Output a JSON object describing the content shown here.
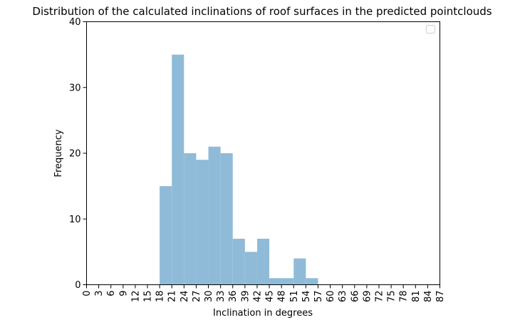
{
  "chart_data": {
    "type": "bar",
    "title": "Distribution of the calculated inclinations of roof surfaces in the predicted pointclouds",
    "xlabel": "Inclination in degrees",
    "ylabel": "Frequency",
    "x_ticks": [
      0,
      3,
      6,
      9,
      12,
      15,
      18,
      21,
      24,
      27,
      30,
      33,
      36,
      39,
      42,
      45,
      48,
      51,
      54,
      57,
      60,
      63,
      66,
      69,
      72,
      75,
      78,
      81,
      84,
      87
    ],
    "y_ticks": [
      0,
      10,
      20,
      30,
      40
    ],
    "xlim": [
      0,
      87
    ],
    "ylim": [
      0,
      40
    ],
    "bin_width": 3,
    "bins": [
      {
        "start": 18,
        "value": 15
      },
      {
        "start": 21,
        "value": 35
      },
      {
        "start": 24,
        "value": 20
      },
      {
        "start": 27,
        "value": 19
      },
      {
        "start": 30,
        "value": 21
      },
      {
        "start": 33,
        "value": 20
      },
      {
        "start": 36,
        "value": 7
      },
      {
        "start": 39,
        "value": 5
      },
      {
        "start": 42,
        "value": 7
      },
      {
        "start": 45,
        "value": 1
      },
      {
        "start": 48,
        "value": 1
      },
      {
        "start": 51,
        "value": 4
      },
      {
        "start": 54,
        "value": 1
      }
    ],
    "bar_color": "#8fbbd9",
    "grid": false,
    "legend": {
      "placement": "top-right",
      "entries": []
    }
  }
}
